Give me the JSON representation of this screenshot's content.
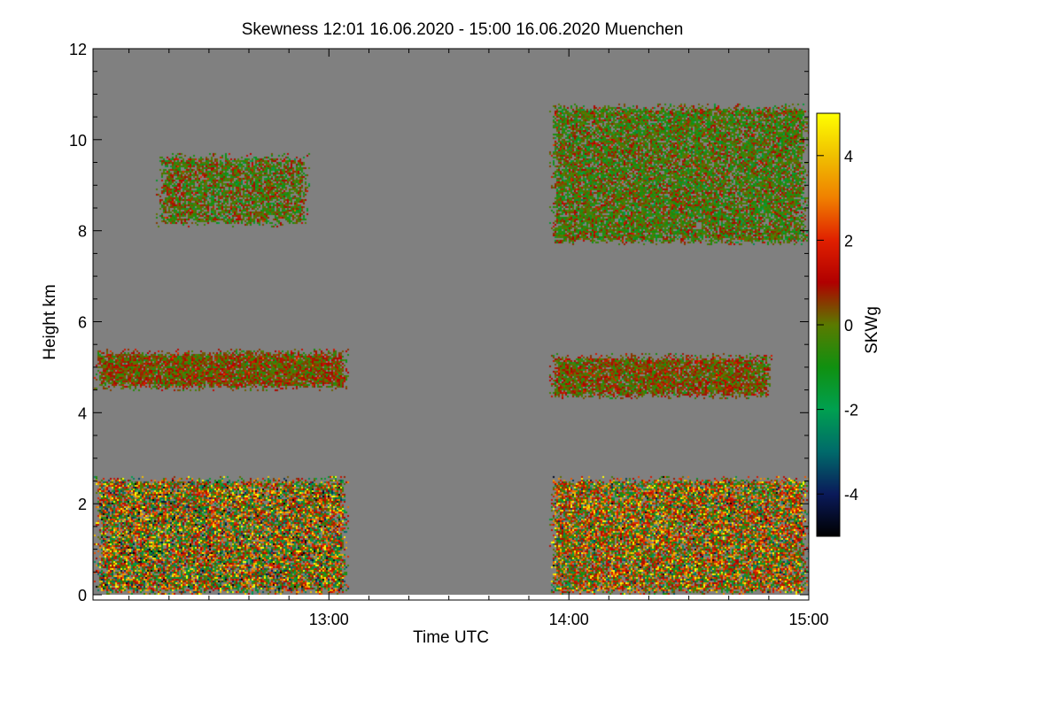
{
  "chart_data": {
    "type": "heatmap",
    "title": "Skewness   12:01 16.06.2020 - 15:00 16.06.2020 Muenchen",
    "xlabel": "Time UTC",
    "ylabel": "Height km",
    "colorbar_label": "SKWg",
    "x_range_hours": [
      12.0167,
      15.0
    ],
    "y_range_km": [
      0,
      12
    ],
    "x_ticks": [
      {
        "value": 13.0,
        "label": "13:00"
      },
      {
        "value": 14.0,
        "label": "14:00"
      },
      {
        "value": 15.0,
        "label": "15:00"
      }
    ],
    "y_ticks": [
      {
        "value": 0,
        "label": "0"
      },
      {
        "value": 2,
        "label": "2"
      },
      {
        "value": 4,
        "label": "4"
      },
      {
        "value": 6,
        "label": "6"
      },
      {
        "value": 8,
        "label": "8"
      },
      {
        "value": 10,
        "label": "10"
      },
      {
        "value": 12,
        "label": "12"
      }
    ],
    "colorbar_range": [
      -5,
      5
    ],
    "colorbar_ticks": [
      {
        "value": 4,
        "label": "4"
      },
      {
        "value": 2,
        "label": "2"
      },
      {
        "value": 0,
        "label": "0"
      },
      {
        "value": -2,
        "label": "-2"
      },
      {
        "value": -4,
        "label": "-4"
      }
    ],
    "background_color": "#808080",
    "colormap": [
      "#000000",
      "#0a1a5a",
      "#006a6a",
      "#00a050",
      "#109010",
      "#5a7a00",
      "#b00000",
      "#e02000",
      "#f08000",
      "#f0c000",
      "#ffff00"
    ],
    "data_gap_hours": [
      13.08,
      13.92
    ],
    "regions": [
      {
        "name": "low-layer-left",
        "t": [
          12.02,
          13.08
        ],
        "h": [
          0.0,
          2.6
        ],
        "mean": 0.5,
        "spread": 2.5,
        "density": 0.85
      },
      {
        "name": "low-layer-right",
        "t": [
          13.92,
          15.0
        ],
        "h": [
          0.0,
          2.6
        ],
        "mean": 0.8,
        "spread": 2.2,
        "density": 0.85
      },
      {
        "name": "mid-layer-left",
        "t": [
          12.02,
          13.08
        ],
        "h": [
          4.5,
          5.4
        ],
        "mean": 0.4,
        "spread": 0.8,
        "density": 0.92
      },
      {
        "name": "mid-layer-right",
        "t": [
          13.92,
          14.85
        ],
        "h": [
          4.3,
          5.3
        ],
        "mean": 0.3,
        "spread": 0.8,
        "density": 0.88
      },
      {
        "name": "upper-cloud-left",
        "t": [
          12.28,
          12.92
        ],
        "h": [
          8.1,
          9.7
        ],
        "mean": -0.1,
        "spread": 0.9,
        "density": 0.75
      },
      {
        "name": "upper-cloud-right",
        "t": [
          13.92,
          15.0
        ],
        "h": [
          7.7,
          10.8
        ],
        "mean": -0.2,
        "spread": 0.9,
        "density": 0.82
      }
    ]
  }
}
